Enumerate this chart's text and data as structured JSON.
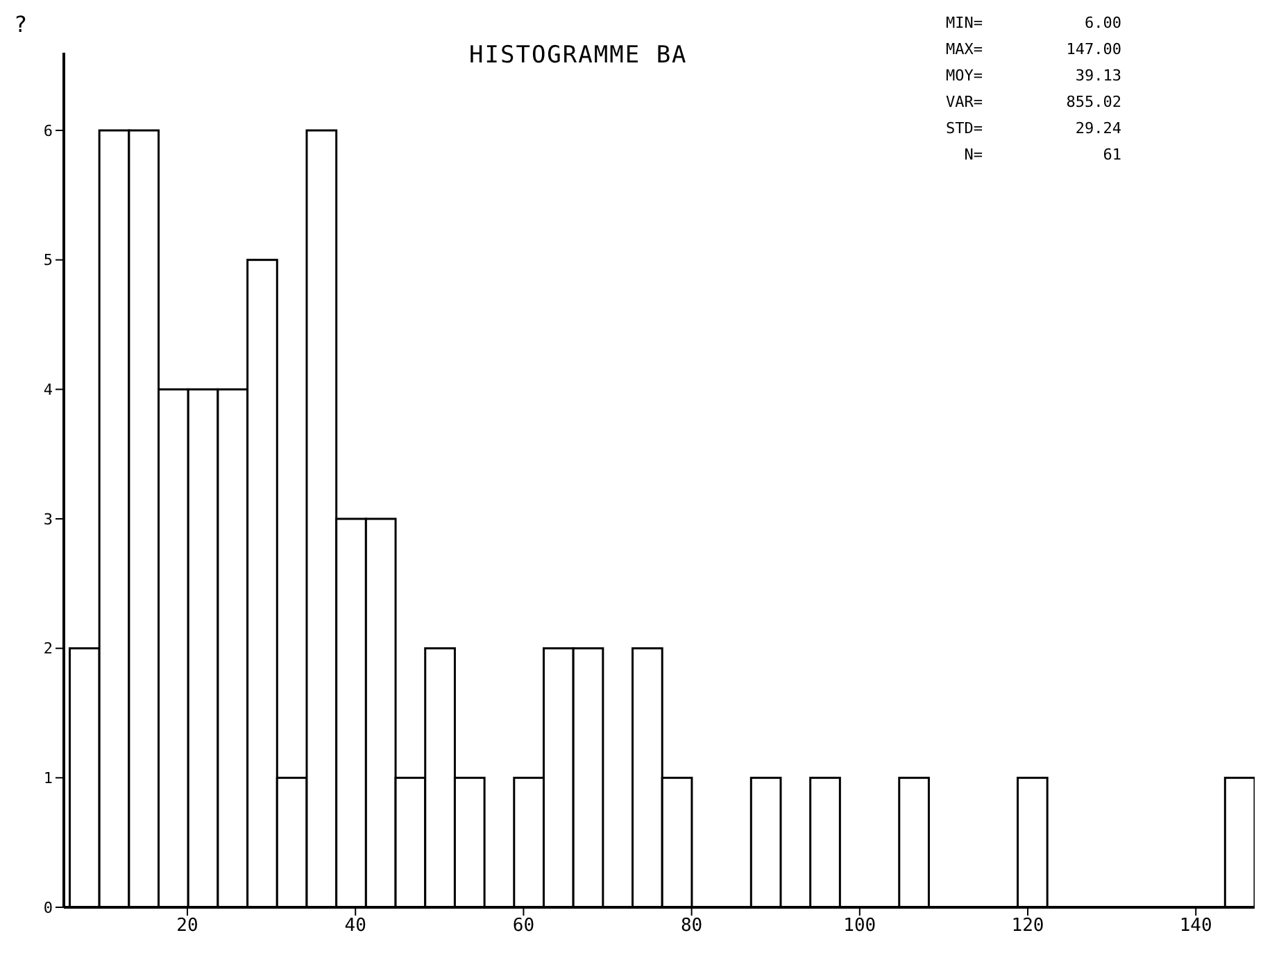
{
  "chart_data": {
    "type": "histogram",
    "title": "HISTOGRAMME BA",
    "bins": [
      6,
      9.525,
      13.05,
      16.575,
      20.1,
      23.625,
      27.15,
      30.675,
      34.2,
      37.725,
      41.25,
      44.775,
      48.3,
      51.825,
      55.35,
      58.875,
      62.4,
      65.925,
      69.45,
      72.975,
      76.5,
      80.025,
      83.55,
      87.075,
      90.6,
      94.125,
      97.65,
      101.175,
      104.7,
      108.225,
      111.75,
      115.275,
      118.8,
      122.325,
      125.85,
      129.375,
      132.9,
      136.425,
      139.95,
      143.475,
      147
    ],
    "values": [
      2,
      6,
      6,
      4,
      4,
      4,
      5,
      1,
      6,
      3,
      3,
      1,
      2,
      1,
      0,
      1,
      2,
      2,
      0,
      2,
      1,
      0,
      0,
      1,
      0,
      1,
      0,
      0,
      1,
      0,
      0,
      0,
      1,
      0,
      0,
      0,
      0,
      0,
      0,
      1
    ],
    "color": "#ffffff",
    "xlim": [
      5.3,
      147
    ],
    "xticks": [
      20,
      40,
      60,
      80,
      100,
      120,
      140
    ],
    "ylim": [
      0,
      6.6
    ],
    "yticks": [
      0,
      1,
      2,
      3,
      4,
      5,
      6
    ],
    "annotations": [
      "?",
      "MIN= 6.00",
      "MAX= 147.00",
      "MOY= 39.13",
      "VAR= 855.02",
      "STD= 29.24",
      "N= 61"
    ]
  }
}
